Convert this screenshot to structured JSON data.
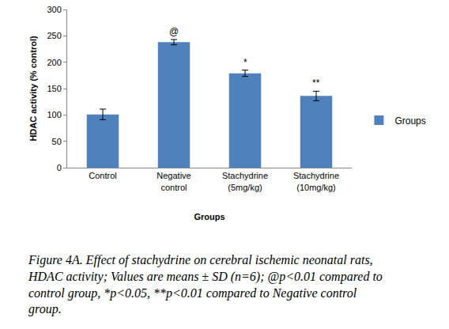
{
  "chart_data": {
    "type": "bar",
    "categories": [
      "Control",
      "Negative control",
      "Stachydrine (5mg/kg)",
      "Stachydrine (10mg/kg)"
    ],
    "series": [
      {
        "name": "Groups",
        "color": "#4f81bd",
        "values": [
          101,
          238,
          179,
          136
        ],
        "errors": [
          10,
          5,
          6,
          9
        ]
      }
    ],
    "x_label": "Groups",
    "y_label": "HDAC activity (% control)",
    "ylim": [
      0,
      300
    ],
    "yticks": [
      0,
      50,
      100,
      150,
      200,
      250,
      300
    ],
    "grid": false,
    "legend": "right",
    "annotations": [
      {
        "category": "Negative control",
        "text": "@"
      },
      {
        "category": "Stachydrine (5mg/kg)",
        "text": "*"
      },
      {
        "category": "Stachydrine (10mg/kg)",
        "text": "**"
      }
    ],
    "caption": [
      "Figure 4A. Effect of stachydrine on cerebral ischemic neonatal rats,",
      "HDAC activity; Values are means ± SD (n=6); @p<0.01 compared to",
      "control group, *p<0.05, **p<0.01 compared to Negative control",
      "group."
    ]
  }
}
